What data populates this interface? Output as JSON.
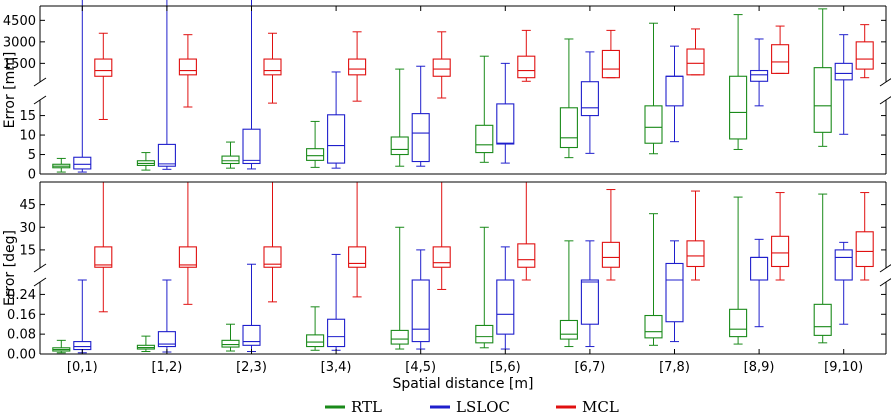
{
  "chart_data": {
    "type": "box",
    "xlabel": "Spatial distance [m]",
    "categories": [
      "[0,1)",
      "[1,2)",
      "[2,3)",
      "[3,4)",
      "[4,5)",
      "[5,6)",
      "[6,7)",
      "[7,8)",
      "[8,9)",
      "[9,10)"
    ],
    "legend": {
      "placement": "bottom-center",
      "entries": [
        {
          "name": "RTL",
          "color": "#1a8a1a"
        },
        {
          "name": "LSLOC",
          "color": "#1f1fcc"
        },
        {
          "name": "MCL",
          "color": "#e01010"
        }
      ]
    },
    "panels": [
      {
        "ylabel": "Error [mm]",
        "broken_axis": true,
        "upper": {
          "ylim": [
            200,
            5500
          ],
          "ticks": [
            "1500",
            "3000",
            "4500"
          ]
        },
        "lower": {
          "ylim": [
            0,
            19
          ],
          "ticks": [
            "0",
            "5",
            "10",
            "15"
          ]
        },
        "series": [
          {
            "name": "RTL",
            "boxes": [
              [
                0.5,
                1.6,
                2.0,
                2.5,
                4.0
              ],
              [
                1.0,
                2.2,
                2.7,
                3.4,
                5.5
              ],
              [
                1.5,
                2.7,
                3.4,
                4.6,
                8.2
              ],
              [
                1.7,
                3.5,
                4.7,
                6.5,
                13.5
              ],
              [
                2.0,
                5.0,
                6.3,
                9.5,
                1100
              ],
              [
                3.0,
                5.5,
                7.5,
                12.5,
                2000
              ],
              [
                4.2,
                6.8,
                9.3,
                17.0,
                3200
              ],
              [
                5.2,
                7.9,
                12.0,
                17.5,
                4300
              ],
              [
                6.3,
                9.0,
                15.8,
                600,
                4900
              ],
              [
                7.1,
                10.7,
                17.5,
                1200,
                5300
              ]
            ]
          },
          {
            "name": "LSLOC",
            "boxes": [
              [
                0.5,
                1.3,
                2.5,
                4.3,
                14000
              ],
              [
                1.2,
                2.0,
                2.6,
                7.6,
                16000
              ],
              [
                1.3,
                2.7,
                3.5,
                11.5,
                17000
              ],
              [
                1.5,
                2.8,
                7.3,
                15.2,
                900
              ],
              [
                2.0,
                3.2,
                10.5,
                15.5,
                1300
              ],
              [
                2.8,
                7.7,
                7.9,
                18.0,
                1500
              ],
              [
                5.3,
                15.0,
                17.0,
                220,
                2300
              ],
              [
                8.3,
                17.5,
                600,
                600,
                2700
              ],
              [
                17.5,
                250,
                700,
                1000,
                3200
              ],
              [
                10.2,
                350,
                800,
                1500,
                3500
              ]
            ]
          },
          {
            "name": "MCL",
            "boxes": [
              [
                14.0,
                600,
                1000,
                1800,
                3600
              ],
              [
                17.2,
                700,
                1000,
                1800,
                3500
              ],
              [
                18.2,
                700,
                1000,
                1800,
                3600
              ],
              [
                18.7,
                700,
                1100,
                1800,
                3700
              ],
              [
                19.5,
                600,
                1100,
                1800,
                3700
              ],
              [
                250,
                500,
                1000,
                2000,
                3800
              ],
              [
                500,
                500,
                1100,
                2400,
                3800
              ],
              [
                700,
                700,
                1500,
                2500,
                3900
              ],
              [
                800,
                800,
                1600,
                2800,
                4100
              ],
              [
                500,
                1100,
                1800,
                3000,
                4200
              ]
            ]
          }
        ]
      },
      {
        "ylabel": "Error [deg]",
        "broken_axis": true,
        "upper": {
          "ylim": [
            3,
            60
          ],
          "ticks": [
            "15",
            "30",
            "45"
          ]
        },
        "lower": {
          "ylim": [
            0,
            0.29
          ],
          "ticks": [
            "0.00",
            "0.08",
            "0.16",
            "0.24"
          ]
        },
        "series": [
          {
            "name": "RTL",
            "boxes": [
              [
                0.005,
                0.012,
                0.018,
                0.025,
                0.055
              ],
              [
                0.01,
                0.02,
                0.026,
                0.035,
                0.072
              ],
              [
                0.012,
                0.028,
                0.038,
                0.055,
                0.12
              ],
              [
                0.015,
                0.03,
                0.048,
                0.077,
                0.19
              ],
              [
                0.02,
                0.04,
                0.06,
                0.095,
                30
              ],
              [
                0.025,
                0.045,
                0.07,
                0.115,
                30
              ],
              [
                0.03,
                0.06,
                0.08,
                0.135,
                21
              ],
              [
                0.035,
                0.065,
                0.09,
                0.155,
                39
              ],
              [
                0.04,
                0.07,
                0.1,
                0.18,
                50
              ],
              [
                0.045,
                0.075,
                0.11,
                0.2,
                52
              ]
            ]
          },
          {
            "name": "LSLOC",
            "boxes": [
              [
                0.005,
                0.018,
                0.03,
                0.05,
                0.3
              ],
              [
                0.008,
                0.03,
                0.04,
                0.09,
                0.4
              ],
              [
                0.01,
                0.035,
                0.05,
                0.115,
                5.5
              ],
              [
                0.015,
                0.03,
                0.07,
                0.14,
                12
              ],
              [
                0.02,
                0.05,
                0.1,
                0.3,
                15
              ],
              [
                0.02,
                0.08,
                0.16,
                0.4,
                17
              ],
              [
                0.03,
                0.12,
                0.29,
                0.55,
                21
              ],
              [
                0.05,
                0.13,
                0.32,
                6.0,
                21
              ],
              [
                0.11,
                0.6,
                10.0,
                10.0,
                22
              ],
              [
                0.12,
                0.9,
                10.0,
                15.0,
                20
              ]
            ]
          },
          {
            "name": "MCL",
            "boxes": [
              [
                0.17,
                3.5,
                5.0,
                17.0,
                60
              ],
              [
                0.2,
                3.5,
                5.0,
                17.0,
                60
              ],
              [
                0.21,
                3.5,
                5.5,
                17.0,
                60
              ],
              [
                0.23,
                3.5,
                6.0,
                17.0,
                60
              ],
              [
                0.26,
                3.5,
                6.5,
                17.0,
                60
              ],
              [
                0.3,
                3.5,
                8.5,
                19.0,
                60
              ],
              [
                0.5,
                3.5,
                10.0,
                20.0,
                55
              ],
              [
                0.6,
                4.0,
                11.0,
                21.0,
                54
              ],
              [
                1.0,
                4.0,
                13.0,
                24.0,
                53
              ],
              [
                2.0,
                4.0,
                14.0,
                27.0,
                53
              ]
            ]
          }
        ]
      }
    ]
  }
}
